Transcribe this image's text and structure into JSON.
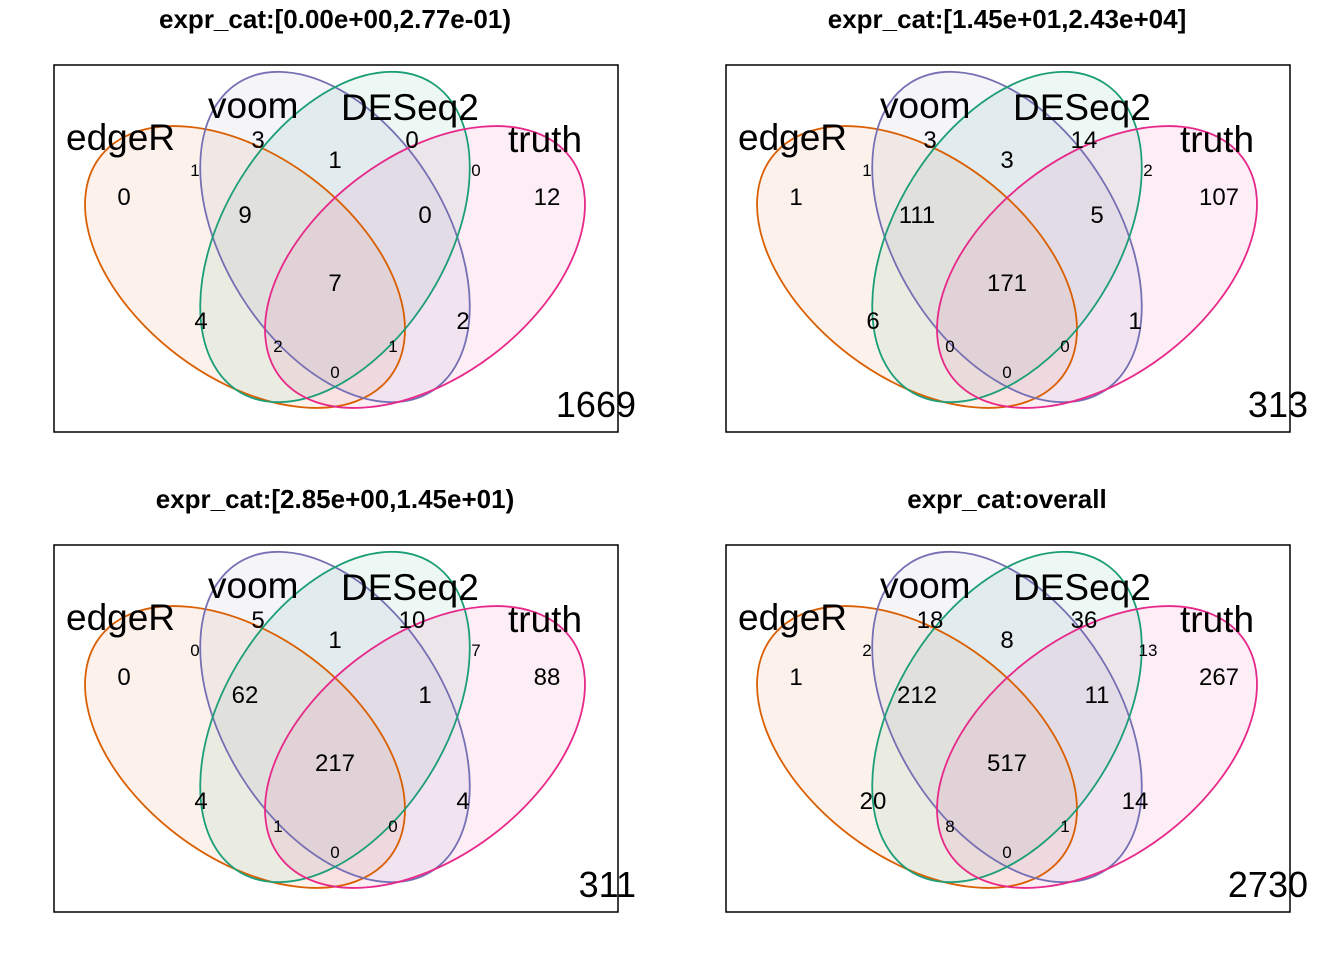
{
  "sets": [
    {
      "key": "edgeR",
      "label": "edgeR",
      "color": "#D95F02",
      "fill": "#FBE9DD"
    },
    {
      "key": "voom",
      "label": "voom",
      "color": "#7570B3",
      "fill": "#E5E4F0"
    },
    {
      "key": "DESeq2",
      "label": "DESeq2",
      "color": "#1B9E77",
      "fill": "#DDEEE7"
    },
    {
      "key": "truth",
      "label": "truth",
      "color": "#E7298A",
      "fill": "#FBDFEE"
    }
  ],
  "panels": [
    {
      "title": "expr_cat:[0.00e+00,2.77e-01)",
      "counts": {
        "edgeR_only": "0",
        "voom_only": "3",
        "deseq2_only": "0",
        "truth_only": "12",
        "edgeR_voom": "1",
        "voom_deseq2": "1",
        "deseq2_truth": "0",
        "edgeR_voom_deseq2": "9",
        "voom_deseq2_truth": "0",
        "all": "7",
        "edgeR_deseq2": "4",
        "voom_truth": "2",
        "edgeR_deseq2_truth": "2",
        "edgeR_voom_truth": "1",
        "edgeR_truth": "0",
        "outside": "1669"
      }
    },
    {
      "title": "expr_cat:[1.45e+01,2.43e+04]",
      "counts": {
        "edgeR_only": "1",
        "voom_only": "3",
        "deseq2_only": "14",
        "truth_only": "107",
        "edgeR_voom": "1",
        "voom_deseq2": "3",
        "deseq2_truth": "2",
        "edgeR_voom_deseq2": "111",
        "voom_deseq2_truth": "5",
        "all": "171",
        "edgeR_deseq2": "6",
        "voom_truth": "1",
        "edgeR_deseq2_truth": "0",
        "edgeR_voom_truth": "0",
        "edgeR_truth": "0",
        "outside": "313"
      }
    },
    {
      "title": "expr_cat:[2.85e+00,1.45e+01)",
      "counts": {
        "edgeR_only": "0",
        "voom_only": "5",
        "deseq2_only": "10",
        "truth_only": "88",
        "edgeR_voom": "0",
        "voom_deseq2": "1",
        "deseq2_truth": "7",
        "edgeR_voom_deseq2": "62",
        "voom_deseq2_truth": "1",
        "all": "217",
        "edgeR_deseq2": "4",
        "voom_truth": "4",
        "edgeR_deseq2_truth": "1",
        "edgeR_voom_truth": "0",
        "edgeR_truth": "0",
        "outside": "311"
      }
    },
    {
      "title": "expr_cat:overall",
      "counts": {
        "edgeR_only": "1",
        "voom_only": "18",
        "deseq2_only": "36",
        "truth_only": "267",
        "edgeR_voom": "2",
        "voom_deseq2": "8",
        "deseq2_truth": "13",
        "edgeR_voom_deseq2": "212",
        "voom_deseq2_truth": "11",
        "all": "517",
        "edgeR_deseq2": "20",
        "voom_truth": "14",
        "edgeR_deseq2_truth": "8",
        "edgeR_voom_truth": "1",
        "edgeR_truth": "0",
        "outside": "2730"
      }
    }
  ]
}
